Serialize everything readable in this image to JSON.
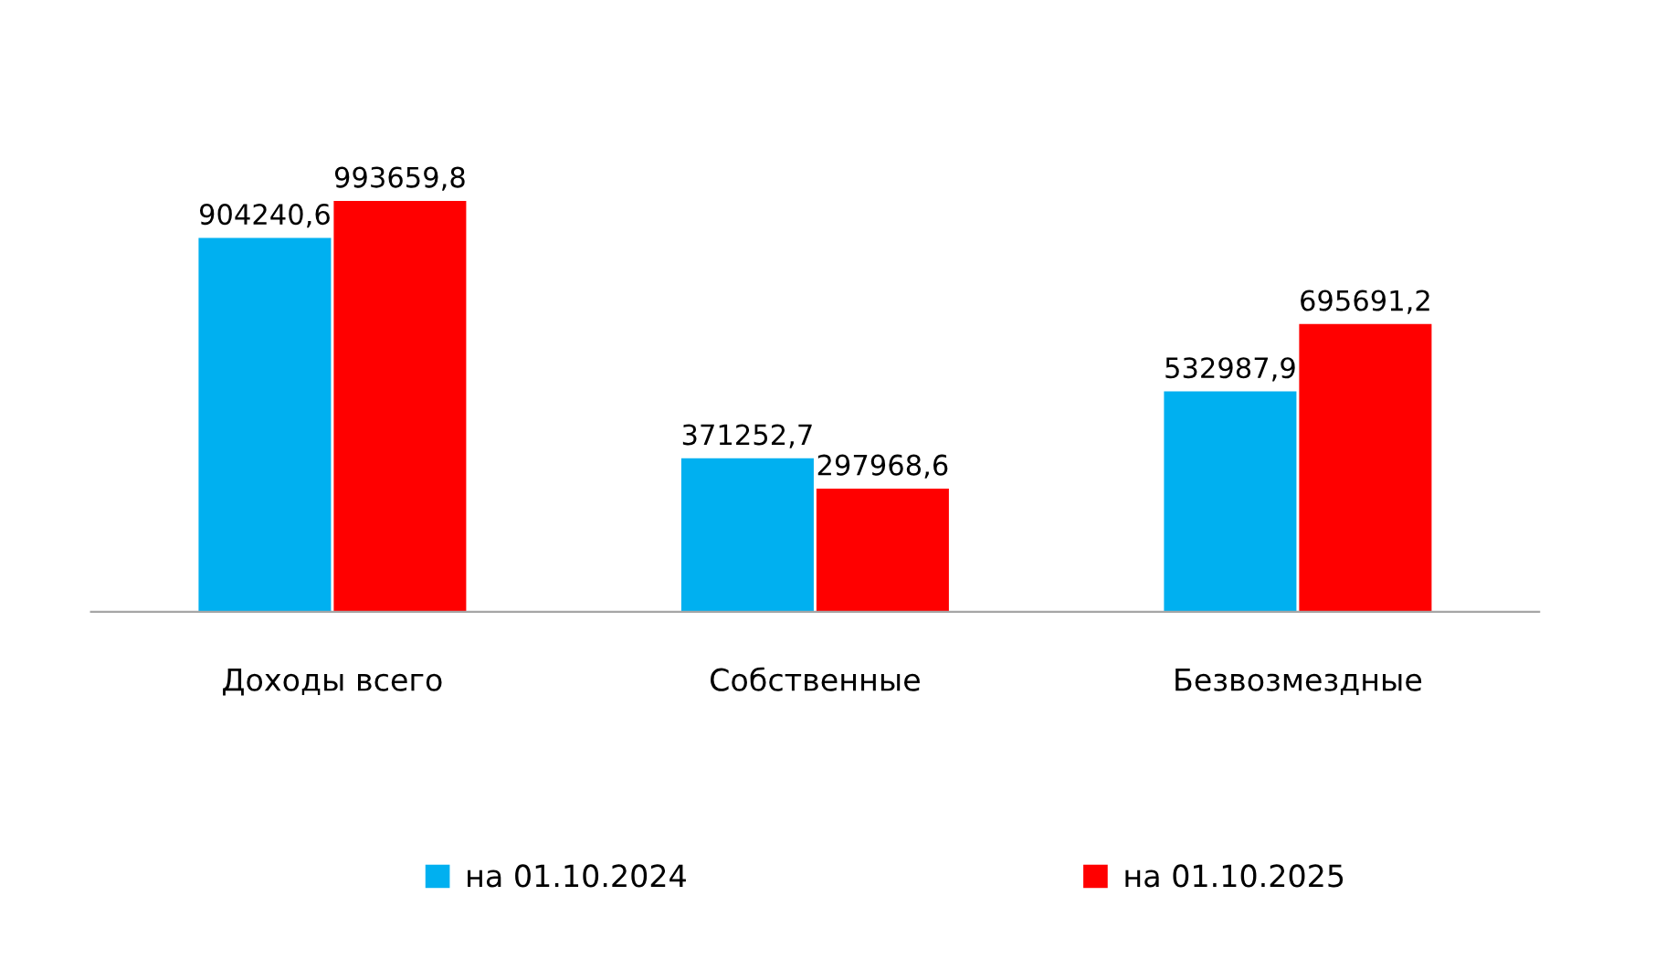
{
  "chart_data": {
    "type": "bar",
    "categories": [
      "Доходы всего",
      "Собственные",
      "Безвозмездные"
    ],
    "series": [
      {
        "name": "на 01.10.2024",
        "color": "#00b0f0",
        "values": [
          904240.6,
          371252.7,
          532987.9
        ],
        "value_labels": [
          "904240,6",
          "371252,7",
          "532987,9"
        ]
      },
      {
        "name": "на 01.10.2025",
        "color": "#ff0000",
        "values": [
          993659.8,
          297968.6,
          695691.2
        ],
        "value_labels": [
          "993659,8",
          "297968,6",
          "695691,2"
        ]
      }
    ],
    "tick_labels": "x",
    "legend": "bottom"
  }
}
